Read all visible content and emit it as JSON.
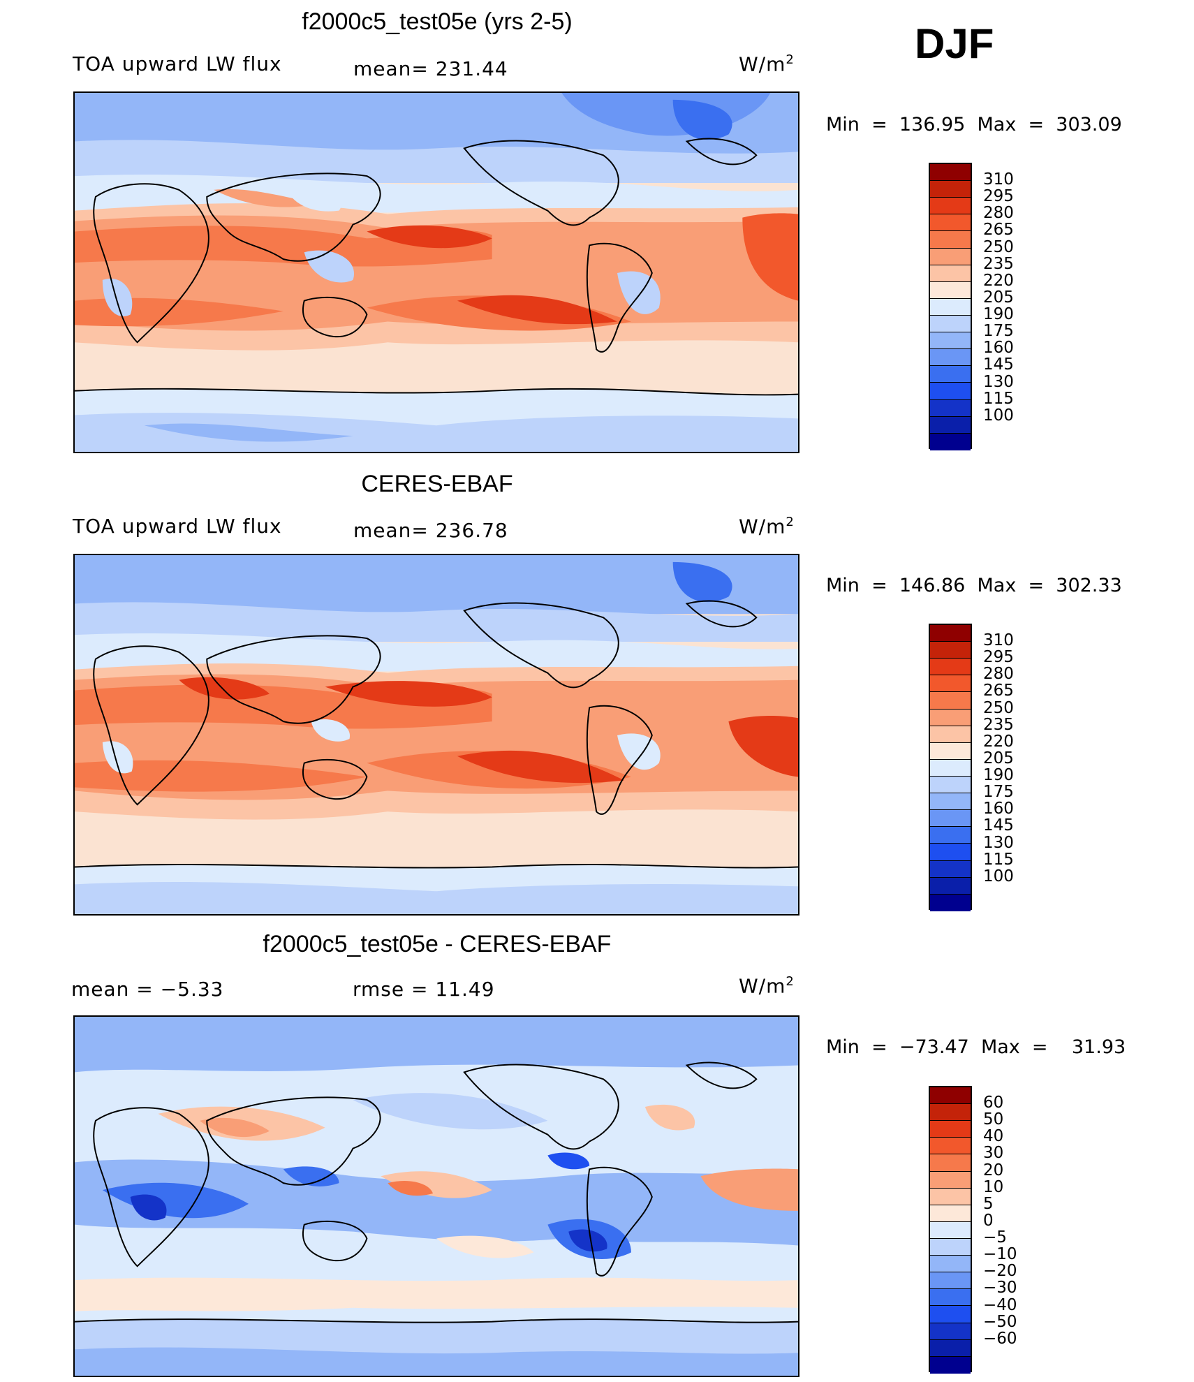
{
  "figure": {
    "season": "DJF",
    "colors_full": [
      "#00008f",
      "#0a1faa",
      "#1433c8",
      "#1e4ff0",
      "#3a6ff0",
      "#6a96f5",
      "#93b6f8",
      "#bdd3fb",
      "#dcebfd",
      "#fde8d9",
      "#fcc4a6",
      "#f99e76",
      "#f6794b",
      "#f2582c",
      "#e43a17",
      "#c42309",
      "#8f0000"
    ],
    "colors_diff": [
      "#00008f",
      "#0a1faa",
      "#1433c8",
      "#1e4ff0",
      "#3a6ff0",
      "#6a96f5",
      "#93b6f8",
      "#bdd3fb",
      "#dcebfd",
      "#fde8d9",
      "#fcc4a6",
      "#f99e76",
      "#f6794b",
      "#f2582c",
      "#e43a17",
      "#c42309",
      "#8f0000"
    ]
  },
  "panels": [
    {
      "title": "f2000c5_test05e (yrs 2-5)",
      "left_label": "TOA upward LW flux",
      "center_label": "mean=  231.44",
      "units": "W/m",
      "units_sup": "2",
      "min_max": "Min  =  136.95  Max  =  303.09",
      "colorbar_ticks": [
        "310",
        "295",
        "280",
        "265",
        "250",
        "235",
        "220",
        "205",
        "190",
        "175",
        "160",
        "145",
        "130",
        "115",
        "100"
      ],
      "palette": "full"
    },
    {
      "title": "CERES-EBAF",
      "left_label": "TOA upward LW flux",
      "center_label": "mean=  236.78",
      "units": "W/m",
      "units_sup": "2",
      "min_max": "Min  =  146.86  Max  =  302.33",
      "colorbar_ticks": [
        "310",
        "295",
        "280",
        "265",
        "250",
        "235",
        "220",
        "205",
        "190",
        "175",
        "160",
        "145",
        "130",
        "115",
        "100"
      ],
      "palette": "full"
    },
    {
      "title": "f2000c5_test05e - CERES-EBAF",
      "left_label": "mean  =    −5.33",
      "center_label": "rmse  =     11.49",
      "units": "W/m",
      "units_sup": "2",
      "min_max": "Min  =  −73.47  Max  =    31.93",
      "colorbar_ticks": [
        "60",
        "50",
        "40",
        "30",
        "20",
        "10",
        "5",
        "0",
        "−5",
        "−10",
        "−20",
        "−30",
        "−40",
        "−50",
        "−60"
      ],
      "palette": "diff"
    }
  ]
}
